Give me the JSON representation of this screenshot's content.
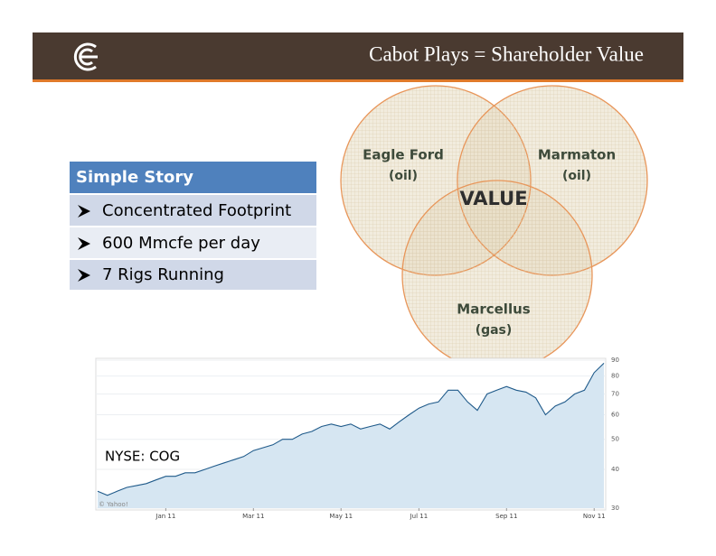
{
  "header": {
    "title": "Cabot Plays = Shareholder Value"
  },
  "venn": {
    "circles": [
      {
        "label": "Eagle Ford",
        "sublabel": "(oil)"
      },
      {
        "label": "Marmaton",
        "sublabel": "(oil)"
      },
      {
        "label": "Marcellus",
        "sublabel": "(gas)"
      }
    ],
    "center_label": "VALUE"
  },
  "story_table": {
    "header": "Simple Story",
    "rows": [
      "Concentrated Footprint",
      "600 Mmcfe per day",
      "7 Rigs Running"
    ]
  },
  "chart_data": {
    "type": "line",
    "annotation": "NYSE: COG",
    "source": "© Yahoo!",
    "categories": [
      null,
      null,
      null,
      null,
      null,
      null,
      null,
      "Jan 11",
      null,
      null,
      null,
      null,
      null,
      null,
      null,
      null,
      "Mar 11",
      null,
      null,
      null,
      null,
      null,
      null,
      null,
      null,
      "May 11",
      null,
      null,
      null,
      null,
      null,
      null,
      null,
      "Jul 11",
      null,
      null,
      null,
      null,
      null,
      null,
      null,
      null,
      "Sep 11",
      null,
      null,
      null,
      null,
      null,
      null,
      null,
      null,
      "Nov 11",
      null
    ],
    "values": [
      34,
      33,
      34,
      35,
      35.5,
      36,
      37,
      38,
      38,
      39,
      39,
      40,
      41,
      42,
      43,
      44,
      46,
      47,
      48,
      50,
      50,
      52,
      53,
      55,
      56,
      55,
      56,
      54,
      55,
      56,
      54,
      57,
      60,
      63,
      65,
      66,
      72,
      72,
      66,
      62,
      70,
      72,
      74,
      72,
      71,
      68,
      60,
      64,
      66,
      70,
      72,
      82,
      88
    ],
    "color": "#1f5a8a",
    "fill_color": "#d6e6f2",
    "ylim": [
      30,
      90
    ],
    "yticks": [
      30,
      40,
      50,
      60,
      70,
      80,
      90
    ],
    "log_scale": true,
    "grid": true
  }
}
